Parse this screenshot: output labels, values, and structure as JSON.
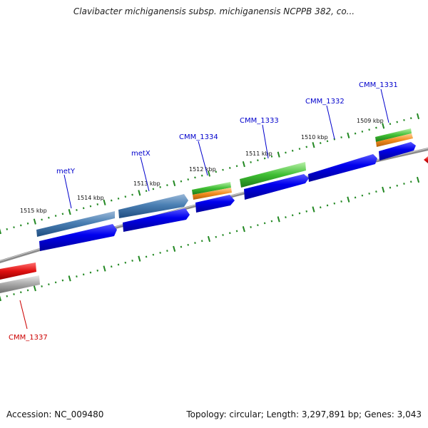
{
  "title": "Clavibacter michiganensis subsp. michiganensis NCPPB 382, co...",
  "footer": {
    "accession": "Accession: NC_009480",
    "topology": "Topology: circular; Length: 3,297,891 bp; Genes: 3,043"
  },
  "colors": {
    "cds": "#0000ee",
    "trna_blue": "#4a7fb3",
    "green": "#3fbe33",
    "orange": "#f28c1e",
    "red": "#e01010",
    "gray": "#a8a8a8",
    "tick": "#228822",
    "label_blue": "#0000cc",
    "label_red": "#cc0000"
  },
  "tick_labels": [
    "1515 kbp",
    "1514 kbp",
    "1513 kbp",
    "1512 kbp",
    "1511 kbp",
    "1510 kbp",
    "1509 kbp"
  ],
  "gene_labels": [
    {
      "text": "metY",
      "color": "blue"
    },
    {
      "text": "metX",
      "color": "blue"
    },
    {
      "text": "CMM_1334",
      "color": "blue"
    },
    {
      "text": "CMM_1333",
      "color": "blue"
    },
    {
      "text": "CMM_1332",
      "color": "blue"
    },
    {
      "text": "CMM_1331",
      "color": "blue"
    },
    {
      "text": "CMM_1337",
      "color": "red"
    }
  ]
}
